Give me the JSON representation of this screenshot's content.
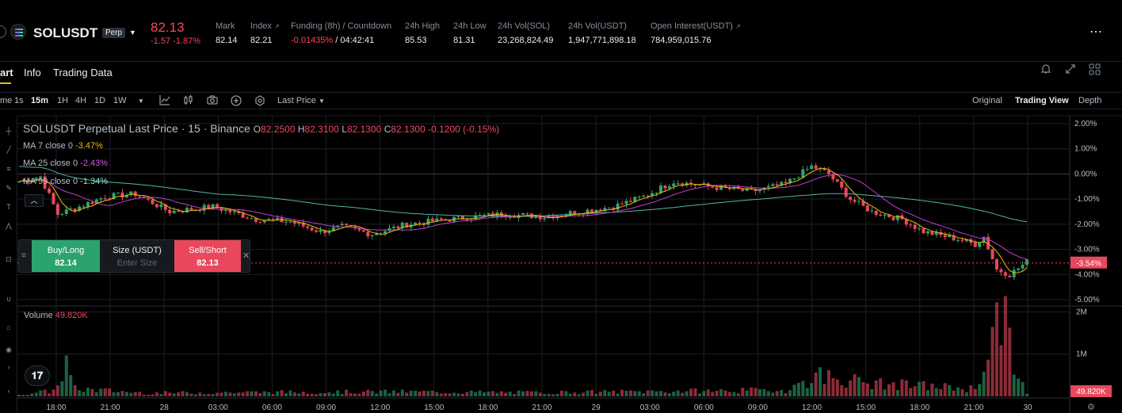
{
  "header": {
    "symbol": "SOLUSDT",
    "contract_type": "Perp",
    "last_price": "82.13",
    "change": "-1.57 -1.87%",
    "stats": [
      {
        "label": "Mark",
        "value": "82.14"
      },
      {
        "label": "Index",
        "value": "82.21"
      },
      {
        "label": "Funding (8h) / Countdown",
        "value_neg": "-0.01435%",
        "value": "/ 04:42:41"
      },
      {
        "label": "24h High",
        "value": "85.53"
      },
      {
        "label": "24h Low",
        "value": "81.31"
      },
      {
        "label": "24h Vol(SOL)",
        "value": "23,268,824.49"
      },
      {
        "label": "24h Vol(USDT)",
        "value": "1,947,771,898.18"
      },
      {
        "label": "Open Interest(USDT)",
        "value": "784,959,015.76"
      }
    ],
    "more_icon": "more-dots-icon"
  },
  "tabs": {
    "chart": "art",
    "info": "Info",
    "trading_data": "Trading Data"
  },
  "toolbar": {
    "time_label": "me",
    "intervals": [
      "1s",
      "15m",
      "1H",
      "4H",
      "1D",
      "1W"
    ],
    "active_interval": "15m",
    "price_type": "Last Price",
    "views": [
      "Original",
      "Trading View",
      "Depth"
    ],
    "active_view": "Trading View"
  },
  "legend": {
    "title": "SOLUSDT Perpetual Last Price · 15 · Binance",
    "o_label": "O",
    "o": "82.2500",
    "h_label": "H",
    "h": "82.3100",
    "l_label": "L",
    "l": "82.1300",
    "c_label": "C",
    "c": "82.1300",
    "change": "-0.1200 (-0.15%)",
    "ma7_label": "MA 7 close 0",
    "ma7_value": "-3.47%",
    "ma25_label": "MA 25 close 0",
    "ma25_value": "-2.43%",
    "ma99_label": "MA 99 close 0",
    "ma99_value": "-1.34%",
    "volume_label": "Volume",
    "volume_value": "49.820K"
  },
  "order_panel": {
    "buy_label": "Buy/Long",
    "buy_price": "82.14",
    "size_label": "Size (USDT)",
    "size_placeholder": "Enter Size",
    "sell_label": "Sell/Short",
    "sell_price": "82.13"
  },
  "colors": {
    "up": "#2ba36e",
    "down": "#e9475c",
    "ma7": "#f0b90b",
    "ma25": "#c33bd4",
    "ma99": "#4fb5a6",
    "grid": "#1c1f26",
    "axis_text": "#b7bdc6"
  },
  "chart_data": {
    "type": "candlestick",
    "y_axis": {
      "unit": "percent",
      "ticks": [
        "2.00%",
        "1.00%",
        "0.00%",
        "-1.00%",
        "-2.00%",
        "-3.00%",
        "-4.00%",
        "-5.00%"
      ],
      "range": [
        -5.0,
        2.0
      ],
      "current": "-3.54%"
    },
    "volume_axis": {
      "ticks": [
        "2M",
        "1M"
      ],
      "current": "49.820K"
    },
    "x_ticks": [
      "18:00",
      "21:00",
      "28",
      "03:00",
      "06:00",
      "09:00",
      "12:00",
      "15:00",
      "18:00",
      "21:00",
      "29",
      "03:00",
      "06:00",
      "09:00",
      "12:00",
      "15:00",
      "18:00",
      "21:00",
      "30"
    ],
    "price_pct_keypoints": [
      [
        0,
        -0.3
      ],
      [
        5,
        -0.1
      ],
      [
        9,
        -1.6
      ],
      [
        14,
        -1.3
      ],
      [
        20,
        -0.9
      ],
      [
        27,
        -0.8
      ],
      [
        35,
        -1.5
      ],
      [
        45,
        -1.3
      ],
      [
        55,
        -1.8
      ],
      [
        63,
        -1.9
      ],
      [
        70,
        -2.3
      ],
      [
        75,
        -2.1
      ],
      [
        82,
        -2.4
      ],
      [
        90,
        -2.0
      ],
      [
        100,
        -1.8
      ],
      [
        112,
        -1.6
      ],
      [
        122,
        -1.7
      ],
      [
        130,
        -1.5
      ],
      [
        138,
        -1.3
      ],
      [
        145,
        -0.9
      ],
      [
        152,
        -0.3
      ],
      [
        160,
        -0.5
      ],
      [
        170,
        -0.7
      ],
      [
        178,
        -0.4
      ],
      [
        184,
        0.3
      ],
      [
        188,
        0.0
      ],
      [
        193,
        -1.0
      ],
      [
        198,
        -1.5
      ],
      [
        205,
        -1.8
      ],
      [
        210,
        -2.3
      ],
      [
        218,
        -2.6
      ],
      [
        222,
        -2.8
      ],
      [
        224,
        -2.5
      ],
      [
        227,
        -3.8
      ],
      [
        230,
        -4.0
      ],
      [
        234,
        -3.5
      ]
    ],
    "volume_keypoints": [
      [
        0,
        0.05
      ],
      [
        8,
        0.13
      ],
      [
        11,
        0.75
      ],
      [
        13,
        0.18
      ],
      [
        30,
        0.08
      ],
      [
        60,
        0.1
      ],
      [
        90,
        0.11
      ],
      [
        120,
        0.09
      ],
      [
        150,
        0.12
      ],
      [
        178,
        0.15
      ],
      [
        186,
        0.5
      ],
      [
        198,
        0.3
      ],
      [
        210,
        0.25
      ],
      [
        222,
        0.18
      ],
      [
        228,
        2.0
      ],
      [
        231,
        0.8
      ],
      [
        234,
        0.05
      ]
    ]
  }
}
